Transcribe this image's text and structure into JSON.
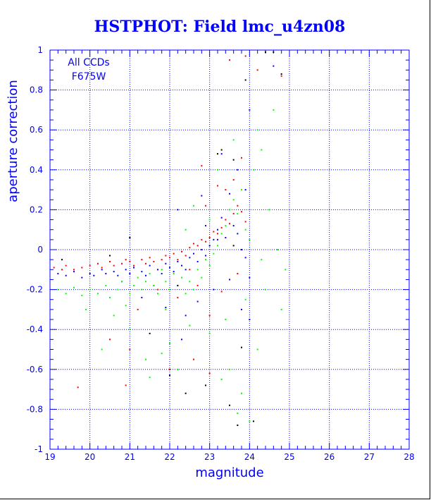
{
  "chart_data": {
    "type": "scatter",
    "title": "HSTPHOT: Field lmc_u4zn08",
    "xlabel": "magnitude",
    "ylabel": "aperture correction",
    "xlim": [
      19,
      28
    ],
    "ylim": [
      -1,
      1
    ],
    "x_ticks": [
      "19",
      "20",
      "21",
      "22",
      "23",
      "24",
      "25",
      "26",
      "27",
      "28"
    ],
    "y_ticks": [
      "-1",
      "-0.8",
      "-0.6",
      "-0.4",
      "-0.2",
      "0",
      "0.2",
      "0.4",
      "0.6",
      "0.8",
      "1"
    ],
    "grid": true,
    "annotations": [
      "All CCDs",
      "F675W"
    ],
    "series_colors": {
      "red": "#ff0000",
      "blue": "#0000ff",
      "green": "#00ff00",
      "black": "#000000"
    },
    "series": [
      {
        "color": "red",
        "points": [
          [
            19.1,
            -0.09
          ],
          [
            19.3,
            -0.1
          ],
          [
            19.4,
            -0.08
          ],
          [
            19.6,
            -0.1
          ],
          [
            19.8,
            -0.09
          ],
          [
            20.0,
            -0.08
          ],
          [
            20.2,
            -0.07
          ],
          [
            20.3,
            -0.09
          ],
          [
            20.5,
            -0.06
          ],
          [
            20.6,
            -0.08
          ],
          [
            20.8,
            -0.07
          ],
          [
            20.9,
            -0.05
          ],
          [
            21.0,
            -0.06
          ],
          [
            21.1,
            -0.08
          ],
          [
            21.3,
            -0.05
          ],
          [
            21.4,
            -0.07
          ],
          [
            21.5,
            -0.04
          ],
          [
            21.6,
            -0.06
          ],
          [
            21.8,
            -0.05
          ],
          [
            21.9,
            -0.03
          ],
          [
            22.0,
            -0.04
          ],
          [
            22.1,
            -0.02
          ],
          [
            22.2,
            -0.05
          ],
          [
            22.3,
            -0.01
          ],
          [
            22.4,
            -0.03
          ],
          [
            22.5,
            0.01
          ],
          [
            22.6,
            0.03
          ],
          [
            22.7,
            0.02
          ],
          [
            22.8,
            0.05
          ],
          [
            22.9,
            0.04
          ],
          [
            23.0,
            0.06
          ],
          [
            23.1,
            0.09
          ],
          [
            23.2,
            0.08
          ],
          [
            23.3,
            0.11
          ],
          [
            23.4,
            0.15
          ],
          [
            23.5,
            0.13
          ],
          [
            23.6,
            0.18
          ],
          [
            23.7,
            0.22
          ],
          [
            23.8,
            0.19
          ],
          [
            23.9,
            0.14
          ],
          [
            23.6,
            0.35
          ],
          [
            23.8,
            0.46
          ],
          [
            23.4,
            0.3
          ],
          [
            23.9,
            0.97
          ],
          [
            23.5,
            0.95
          ],
          [
            22.8,
            0.42
          ],
          [
            21.2,
            -0.3
          ],
          [
            20.5,
            -0.45
          ],
          [
            21.0,
            -0.5
          ],
          [
            22.6,
            -0.55
          ],
          [
            23.0,
            -0.33
          ],
          [
            22.2,
            -0.24
          ],
          [
            22.7,
            -0.18
          ],
          [
            23.3,
            -0.21
          ],
          [
            22.0,
            -0.6
          ],
          [
            23.0,
            -0.62
          ],
          [
            19.7,
            -0.69
          ],
          [
            20.9,
            -0.68
          ],
          [
            23.7,
            -0.12
          ],
          [
            24.8,
            0.87
          ],
          [
            24.2,
            0.9
          ],
          [
            22.5,
            -0.1
          ],
          [
            21.7,
            -0.2
          ],
          [
            23.2,
            0.32
          ],
          [
            22.9,
            0.22
          ]
        ]
      },
      {
        "color": "blue",
        "points": [
          [
            19.2,
            -0.12
          ],
          [
            19.4,
            -0.13
          ],
          [
            19.6,
            -0.11
          ],
          [
            19.8,
            -0.14
          ],
          [
            20.0,
            -0.12
          ],
          [
            20.1,
            -0.13
          ],
          [
            20.3,
            -0.1
          ],
          [
            20.4,
            -0.12
          ],
          [
            20.6,
            -0.11
          ],
          [
            20.7,
            -0.13
          ],
          [
            20.9,
            -0.1
          ],
          [
            21.0,
            -0.12
          ],
          [
            21.1,
            -0.09
          ],
          [
            21.3,
            -0.11
          ],
          [
            21.4,
            -0.13
          ],
          [
            21.5,
            -0.08
          ],
          [
            21.7,
            -0.1
          ],
          [
            21.8,
            -0.12
          ],
          [
            21.9,
            -0.07
          ],
          [
            22.0,
            -0.09
          ],
          [
            22.1,
            -0.11
          ],
          [
            22.2,
            -0.06
          ],
          [
            22.3,
            -0.08
          ],
          [
            22.4,
            -0.1
          ],
          [
            22.5,
            -0.04
          ],
          [
            22.6,
            -0.02
          ],
          [
            22.7,
            -0.06
          ],
          [
            22.8,
            0.0
          ],
          [
            22.9,
            -0.03
          ],
          [
            23.0,
            0.02
          ],
          [
            23.1,
            0.05
          ],
          [
            23.2,
            0.1
          ],
          [
            23.3,
            0.16
          ],
          [
            23.4,
            0.06
          ],
          [
            23.5,
            0.28
          ],
          [
            23.6,
            0.12
          ],
          [
            23.7,
            0.08
          ],
          [
            23.8,
            0.0
          ],
          [
            23.9,
            -0.04
          ],
          [
            24.0,
            -0.14
          ],
          [
            21.3,
            -0.24
          ],
          [
            21.9,
            -0.29
          ],
          [
            22.4,
            -0.33
          ],
          [
            22.7,
            -0.26
          ],
          [
            23.1,
            -0.2
          ],
          [
            23.5,
            -0.15
          ],
          [
            23.8,
            -0.3
          ],
          [
            24.0,
            -0.35
          ],
          [
            22.2,
            0.2
          ],
          [
            22.8,
            0.27
          ],
          [
            23.2,
            0.05
          ],
          [
            23.7,
            0.4
          ],
          [
            24.6,
            0.92
          ],
          [
            24.0,
            0.7
          ],
          [
            23.9,
            0.3
          ],
          [
            22.3,
            -0.45
          ],
          [
            20.8,
            -0.16
          ],
          [
            21.6,
            -0.18
          ],
          [
            22.9,
            0.12
          ],
          [
            23.3,
            0.48
          ]
        ]
      },
      {
        "color": "green",
        "points": [
          [
            19.2,
            -0.2
          ],
          [
            19.4,
            -0.22
          ],
          [
            19.6,
            -0.19
          ],
          [
            19.8,
            -0.23
          ],
          [
            20.0,
            -0.2
          ],
          [
            20.2,
            -0.22
          ],
          [
            20.4,
            -0.18
          ],
          [
            20.5,
            -0.24
          ],
          [
            20.7,
            -0.2
          ],
          [
            20.8,
            -0.16
          ],
          [
            21.0,
            -0.22
          ],
          [
            21.1,
            -0.18
          ],
          [
            21.2,
            -0.14
          ],
          [
            21.3,
            -0.2
          ],
          [
            21.4,
            -0.16
          ],
          [
            21.5,
            -0.12
          ],
          [
            21.6,
            -0.18
          ],
          [
            21.7,
            -0.22
          ],
          [
            21.8,
            -0.1
          ],
          [
            21.9,
            -0.16
          ],
          [
            22.0,
            -0.2
          ],
          [
            22.1,
            -0.12
          ],
          [
            22.2,
            -0.18
          ],
          [
            22.3,
            -0.14
          ],
          [
            22.4,
            -0.22
          ],
          [
            22.5,
            -0.16
          ],
          [
            22.6,
            -0.2
          ],
          [
            22.7,
            -0.1
          ],
          [
            22.8,
            -0.14
          ],
          [
            22.9,
            -0.05
          ],
          [
            23.0,
            -0.08
          ],
          [
            23.1,
            -0.02
          ],
          [
            23.2,
            0.02
          ],
          [
            23.3,
            0.08
          ],
          [
            23.4,
            0.12
          ],
          [
            23.5,
            0.2
          ],
          [
            23.6,
            0.25
          ],
          [
            23.7,
            0.18
          ],
          [
            23.8,
            0.3
          ],
          [
            23.9,
            0.1
          ],
          [
            24.0,
            0.05
          ],
          [
            24.1,
            0.4
          ],
          [
            24.2,
            0.6
          ],
          [
            24.3,
            0.5
          ],
          [
            24.5,
            0.2
          ],
          [
            24.7,
            0.0
          ],
          [
            24.9,
            -0.1
          ],
          [
            24.4,
            -0.2
          ],
          [
            23.9,
            -0.25
          ],
          [
            23.4,
            -0.35
          ],
          [
            23.0,
            -0.42
          ],
          [
            22.5,
            -0.38
          ],
          [
            22.0,
            -0.47
          ],
          [
            21.8,
            -0.52
          ],
          [
            21.4,
            -0.55
          ],
          [
            21.0,
            -0.4
          ],
          [
            20.6,
            -0.33
          ],
          [
            20.3,
            -0.5
          ],
          [
            19.9,
            -0.3
          ],
          [
            23.3,
            -0.65
          ],
          [
            23.8,
            -0.72
          ],
          [
            24.2,
            -0.5
          ],
          [
            24.0,
            -0.86
          ],
          [
            23.7,
            -0.82
          ],
          [
            23.5,
            -0.6
          ],
          [
            22.2,
            -0.6
          ],
          [
            21.5,
            -0.64
          ],
          [
            24.6,
            0.7
          ],
          [
            24.8,
            -0.3
          ],
          [
            23.6,
            0.55
          ],
          [
            23.2,
            0.4
          ],
          [
            22.4,
            0.1
          ],
          [
            21.9,
            -0.3
          ],
          [
            20.9,
            -0.28
          ],
          [
            24.3,
            -0.05
          ],
          [
            23.0,
            0.15
          ],
          [
            22.6,
            0.22
          ]
        ]
      },
      {
        "color": "black",
        "points": [
          [
            19.3,
            -0.05
          ],
          [
            20.5,
            -0.03
          ],
          [
            21.0,
            0.06
          ],
          [
            22.2,
            -0.18
          ],
          [
            23.6,
            0.02
          ],
          [
            23.9,
            0.85
          ],
          [
            24.6,
            0.99
          ],
          [
            23.3,
            0.5
          ],
          [
            23.6,
            0.45
          ],
          [
            23.7,
            -0.88
          ],
          [
            24.1,
            -0.86
          ],
          [
            22.9,
            -0.68
          ],
          [
            23.8,
            -0.49
          ],
          [
            22.0,
            -0.63
          ],
          [
            23.5,
            -0.78
          ],
          [
            22.4,
            -0.72
          ],
          [
            24.4,
            0.99
          ],
          [
            24.8,
            0.88
          ],
          [
            23.2,
            0.48
          ],
          [
            21.5,
            -0.42
          ]
        ]
      }
    ]
  }
}
